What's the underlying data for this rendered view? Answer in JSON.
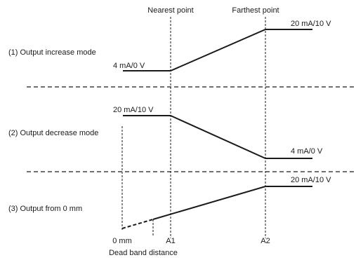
{
  "markers": {
    "nearest": "Nearest point",
    "farthest": "Farthest point"
  },
  "modes": [
    {
      "label": "(1) Output increase mode",
      "low_label": "4 mA/0 V",
      "high_label": "20 mA/10 V"
    },
    {
      "label": "(2) Output decrease mode",
      "low_label": "4 mA/0 V",
      "high_label": "20 mA/10 V"
    },
    {
      "label": "(3) Output from 0 mm",
      "high_label": "20 mA/10 V"
    }
  ],
  "axis": {
    "zero": "0 mm",
    "a1": "A1",
    "a2": "A2",
    "dead_band": "Dead band distance"
  }
}
